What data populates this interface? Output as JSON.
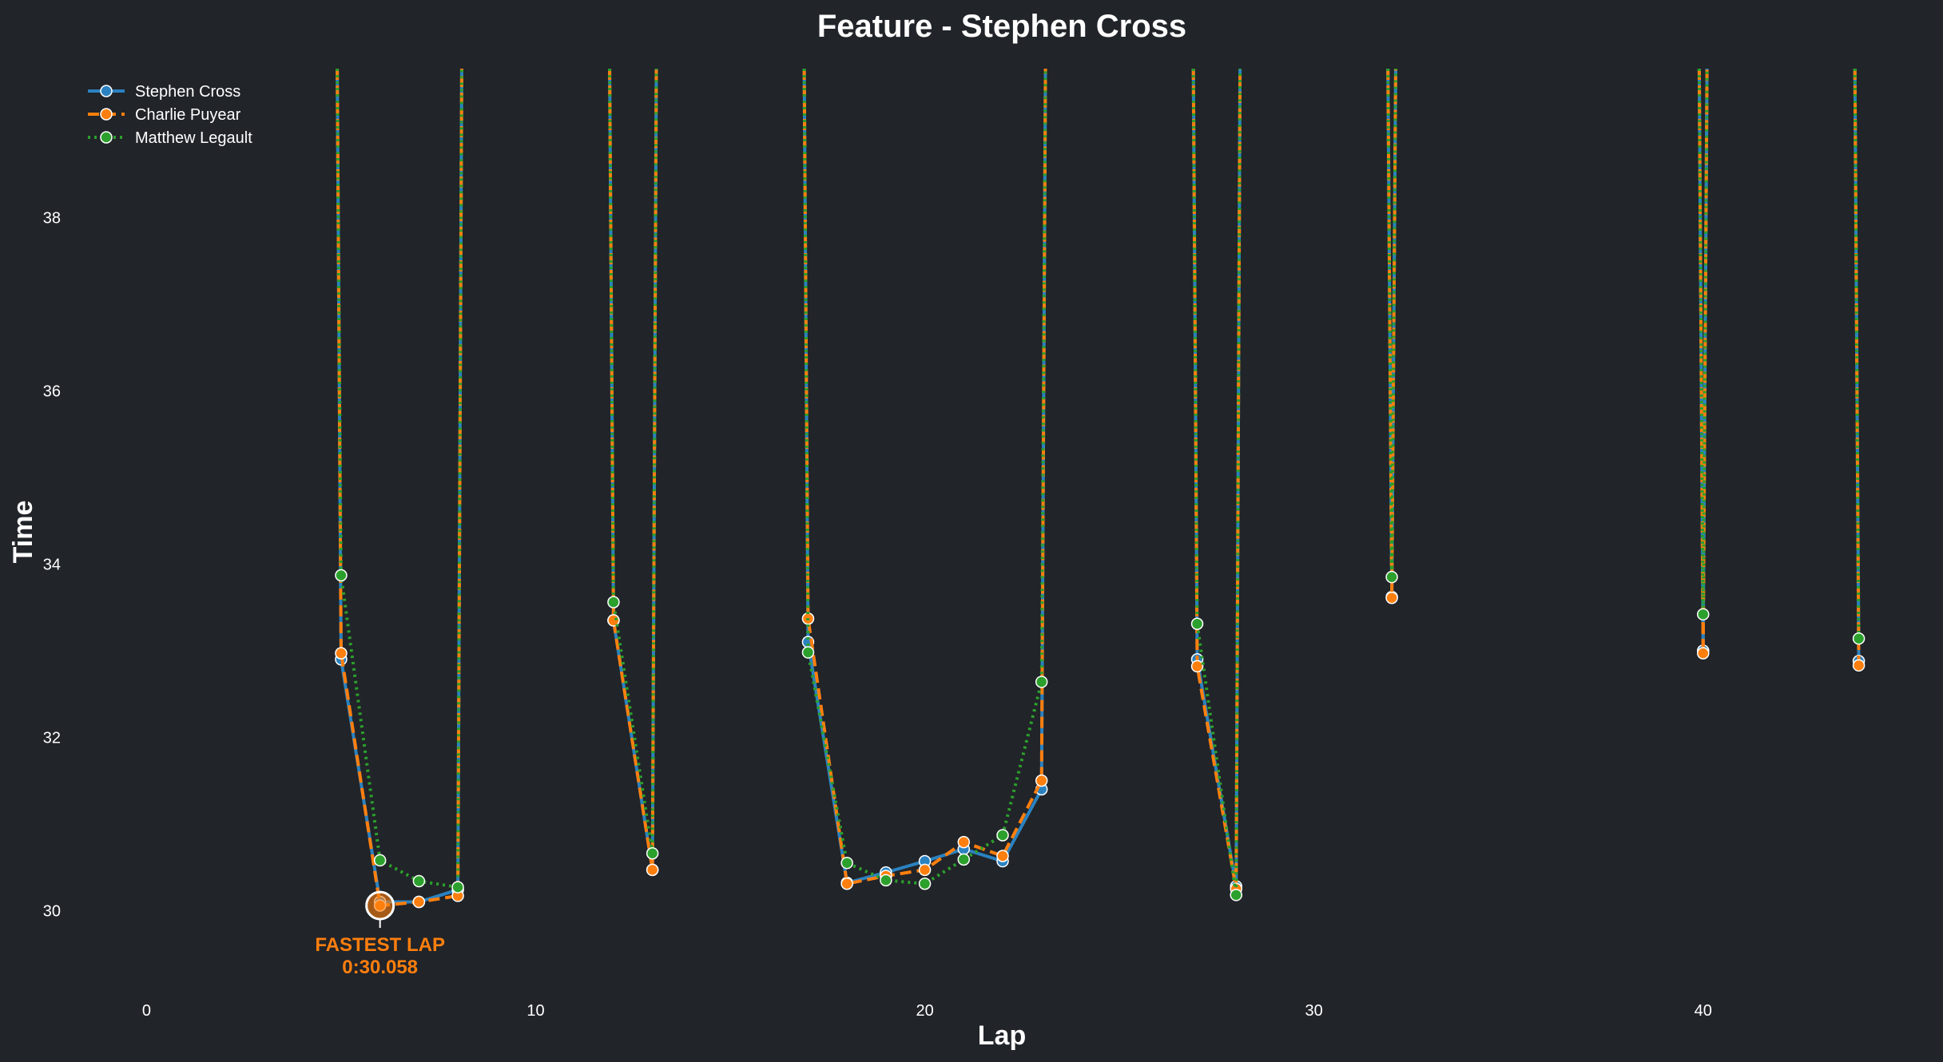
{
  "chart_data": {
    "type": "line",
    "title": "Feature - Stephen Cross",
    "xlabel": "Lap",
    "ylabel": "Time",
    "xlim": [
      -2,
      46
    ],
    "ylim": [
      29.1,
      39.7
    ],
    "xticks": [
      0,
      10,
      20,
      30,
      40
    ],
    "yticks": [
      30,
      32,
      34,
      36,
      38
    ],
    "grid": false,
    "legend_position": "top-left",
    "series": [
      {
        "name": "Stephen Cross",
        "color": "#2b82c0",
        "dash": "solid",
        "x": [
          5,
          6,
          7,
          8,
          12,
          13,
          17,
          18,
          19,
          20,
          21,
          22,
          23,
          27,
          28,
          32,
          40,
          44
        ],
        "y": [
          32.9,
          30.1,
          30.1,
          30.24,
          33.35,
          30.47,
          33.1,
          30.32,
          30.44,
          30.57,
          30.71,
          30.57,
          31.4,
          32.9,
          30.28,
          33.62,
          33.0,
          32.88
        ]
      },
      {
        "name": "Charlie Puyear",
        "color": "#ff7f0e",
        "dash": "dashed",
        "x": [
          5,
          6,
          7,
          8,
          12,
          13,
          17,
          18,
          19,
          20,
          21,
          22,
          23,
          27,
          28,
          32,
          40,
          44
        ],
        "y": [
          32.97,
          30.058,
          30.1,
          30.17,
          33.35,
          30.47,
          33.37,
          30.31,
          30.4,
          30.47,
          30.79,
          30.63,
          31.5,
          32.82,
          30.25,
          33.61,
          32.97,
          32.83
        ]
      },
      {
        "name": "Matthew Legault",
        "color": "#2ca02c",
        "dash": "dotted",
        "x": [
          5,
          6,
          7,
          8,
          12,
          13,
          17,
          18,
          19,
          20,
          21,
          22,
          23,
          27,
          28,
          32,
          40,
          44
        ],
        "y": [
          33.87,
          30.58,
          30.34,
          30.27,
          33.56,
          30.66,
          32.98,
          30.55,
          30.35,
          30.31,
          30.59,
          30.87,
          32.64,
          33.31,
          30.18,
          33.85,
          33.42,
          33.14
        ]
      }
    ],
    "pit_laps": [
      4,
      9,
      11,
      14,
      16,
      24,
      26,
      29,
      31,
      33,
      39,
      41,
      43
    ],
    "annotation": {
      "label": "FASTEST LAP",
      "value": "0:30.058",
      "x": 6,
      "y": 30.058,
      "color": "#ff7f0e"
    }
  }
}
